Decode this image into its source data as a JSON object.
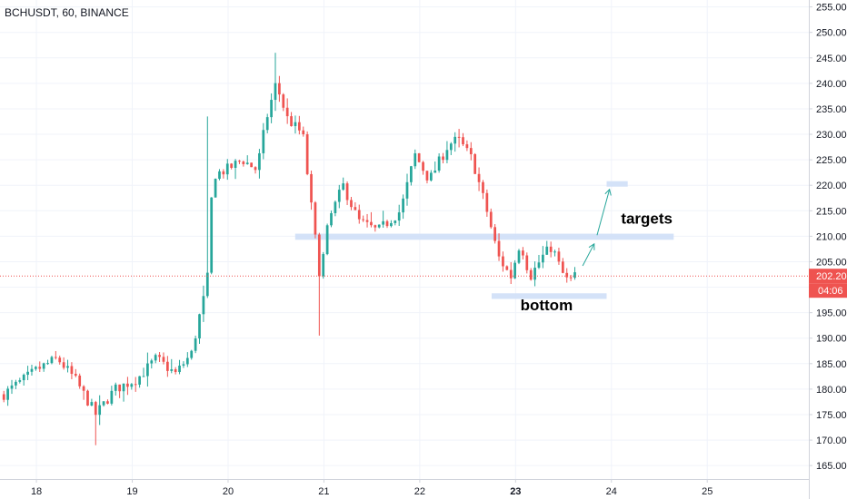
{
  "header": {
    "symbol_label": "BCHUSDT, 60, BINANCE"
  },
  "colors": {
    "up": "#26a69a",
    "down": "#ef5350",
    "zone": "#cfdff7",
    "arrow": "#26a69a",
    "price_line": "#ef5350",
    "grid": "#f0f3fa",
    "axis": "#d1d4dc"
  },
  "price_tag": {
    "value": "202.20",
    "countdown": "04:06"
  },
  "annotations": {
    "targets_label": "targets",
    "bottom_label": "bottom"
  },
  "chart_data": {
    "type": "candlestick",
    "title": "BCHUSDT, 60, BINANCE",
    "y_axis": {
      "position": "right",
      "ylim": [
        162,
        256
      ],
      "ticks": [
        "165.00",
        "170.00",
        "175.00",
        "180.00",
        "185.00",
        "190.00",
        "195.00",
        "200.00",
        "205.00",
        "210.00",
        "215.00",
        "220.00",
        "225.00",
        "230.00",
        "235.00",
        "240.00",
        "245.00",
        "250.00",
        "255.00"
      ]
    },
    "x_axis": {
      "ticks": [
        {
          "label": "18",
          "x": 18
        },
        {
          "label": "19",
          "x": 19
        },
        {
          "label": "20",
          "x": 20
        },
        {
          "label": "21",
          "x": 21
        },
        {
          "label": "22",
          "x": 22
        },
        {
          "label": "23",
          "x": 23,
          "bold": true
        },
        {
          "label": "24",
          "x": 24
        },
        {
          "label": "25",
          "x": 25
        }
      ],
      "xlim": [
        17.62,
        26.06
      ]
    },
    "grid": true,
    "last_price": 202.2,
    "key_points": [
      {
        "x": 17.66,
        "y": 179
      },
      {
        "x": 18.02,
        "y": 184
      },
      {
        "x": 18.22,
        "y": 186
      },
      {
        "x": 18.4,
        "y": 182
      },
      {
        "x": 18.62,
        "y": 175
      },
      {
        "x": 18.82,
        "y": 180
      },
      {
        "x": 19.05,
        "y": 182
      },
      {
        "x": 19.25,
        "y": 186
      },
      {
        "x": 19.45,
        "y": 183
      },
      {
        "x": 19.62,
        "y": 187
      },
      {
        "x": 19.72,
        "y": 196
      },
      {
        "x": 19.78,
        "y": 200
      },
      {
        "x": 19.84,
        "y": 222
      },
      {
        "x": 19.98,
        "y": 223
      },
      {
        "x": 20.15,
        "y": 225
      },
      {
        "x": 20.3,
        "y": 223
      },
      {
        "x": 20.4,
        "y": 233
      },
      {
        "x": 20.5,
        "y": 240
      },
      {
        "x": 20.62,
        "y": 233
      },
      {
        "x": 20.78,
        "y": 230
      },
      {
        "x": 20.86,
        "y": 217
      },
      {
        "x": 20.96,
        "y": 202
      },
      {
        "x": 21.05,
        "y": 213
      },
      {
        "x": 21.2,
        "y": 220
      },
      {
        "x": 21.36,
        "y": 213
      },
      {
        "x": 21.56,
        "y": 211
      },
      {
        "x": 21.8,
        "y": 215
      },
      {
        "x": 21.95,
        "y": 226
      },
      {
        "x": 22.1,
        "y": 221
      },
      {
        "x": 22.3,
        "y": 228
      },
      {
        "x": 22.4,
        "y": 229
      },
      {
        "x": 22.55,
        "y": 225
      },
      {
        "x": 22.7,
        "y": 215
      },
      {
        "x": 22.82,
        "y": 206
      },
      {
        "x": 22.95,
        "y": 202
      },
      {
        "x": 23.05,
        "y": 209
      },
      {
        "x": 23.15,
        "y": 202
      },
      {
        "x": 23.28,
        "y": 206
      },
      {
        "x": 23.38,
        "y": 208
      },
      {
        "x": 23.48,
        "y": 203
      },
      {
        "x": 23.55,
        "y": 201
      },
      {
        "x": 23.62,
        "y": 202.2
      }
    ],
    "drawings": {
      "support_zone_upper": {
        "x1": 20.7,
        "x2": 24.65,
        "y1": 209.3,
        "y2": 210.5
      },
      "target_zone": {
        "x1": 23.95,
        "x2": 24.17,
        "y1": 220,
        "y2": 220.8
      },
      "support_zone_lower": {
        "x1": 22.75,
        "x2": 23.95,
        "y1": 197.7,
        "y2": 198.8
      },
      "arrows": [
        {
          "x1": 23.7,
          "y1": 204.2,
          "x2": 23.82,
          "y2": 208.5
        },
        {
          "x1": 23.85,
          "y1": 210.2,
          "x2": 23.98,
          "y2": 219.2
        }
      ],
      "targets_label_pos": {
        "x": 24.1,
        "y": 212.5
      },
      "bottom_label_pos": {
        "x": 23.05,
        "y": 195.5
      }
    }
  }
}
